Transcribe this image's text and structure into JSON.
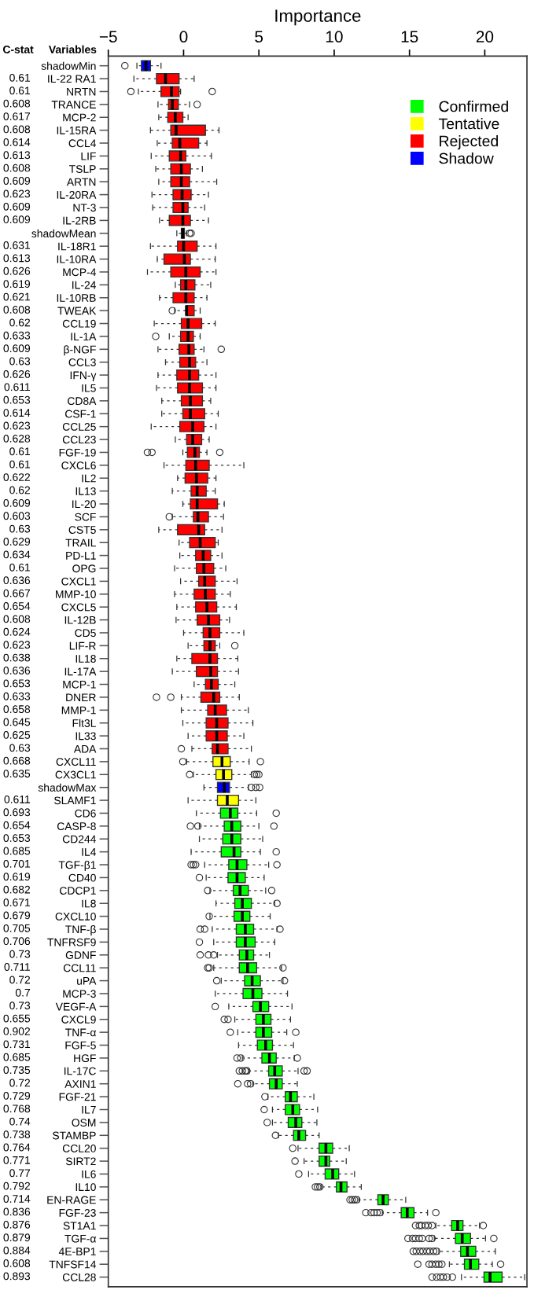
{
  "chart_data": {
    "type": "box",
    "xlabel": "Importance",
    "ylabel": "Variables",
    "y2label": "C-stat",
    "orientation": "horizontal",
    "legend": "top right",
    "xlim": [
      -5,
      22.8
    ],
    "xticks": [
      {
        "value": -5,
        "label": "−5"
      },
      0,
      5,
      10,
      15,
      20
    ],
    "categories": [
      "shadowMin",
      "IL-22 RA1",
      "NRTN",
      "TRANCE",
      "MCP-2",
      "IL-15RA",
      "CCL4",
      "LIF",
      "TSLP",
      "ARTN",
      "IL-20RA",
      "NT-3",
      "IL-2RB",
      "shadowMean",
      "IL-18R1",
      "IL-10RA",
      "MCP-4",
      "IL-24",
      "IL-10RB",
      "TWEAK",
      "CCL19",
      "IL-1A",
      "β-NGF",
      "CCL3",
      "IFN-γ",
      "IL5",
      "CD8A",
      "CSF-1",
      "CCL25",
      "CCL23",
      "FGF-19",
      "CXCL6",
      "IL2",
      "IL13",
      "IL-20",
      "SCF",
      "CST5",
      "TRAIL",
      "PD-L1",
      "OPG",
      "CXCL1",
      "MMP-10",
      "CXCL5",
      "IL-12B",
      "CD5",
      "LIF-R",
      "IL18",
      "IL-17A",
      "MCP-1",
      "DNER",
      "MMP-1",
      "Flt3L",
      "IL33",
      "ADA",
      "CXCL11",
      "CX3CL1",
      "shadowMax",
      "SLAMF1",
      "CD6",
      "CASP-8",
      "CD244",
      "IL4",
      "TGF-β1",
      "CD40",
      "CDCP1",
      "IL8",
      "CXCL10",
      "TNF-β",
      "TNFRSF9",
      "GDNF",
      "CCL11",
      "uPA",
      "MCP-3",
      "VEGF-A",
      "CXCL9",
      "TNF-α",
      "FGF-5",
      "HGF",
      "IL-17C",
      "AXIN1",
      "FGF-21",
      "IL7",
      "OSM",
      "STAMBP",
      "CCL20",
      "SIRT2",
      "IL6",
      "IL10",
      "EN-RAGE",
      "FGF-23",
      "ST1A1",
      "TGF-α",
      "4E-BP1",
      "TNFSF14",
      "CCL28"
    ],
    "y2_categories": [
      null,
      "0.61",
      "0.61",
      "0.608",
      "0.617",
      "0.608",
      "0.614",
      "0.613",
      "0.608",
      "0.609",
      "0.623",
      "0.609",
      "0.609",
      null,
      "0.631",
      "0.613",
      "0.626",
      "0.619",
      "0.621",
      "0.608",
      "0.62",
      "0.633",
      "0.609",
      "0.63",
      "0.626",
      "0.611",
      "0.653",
      "0.614",
      "0.623",
      "0.628",
      "0.61",
      "0.61",
      "0.622",
      "0.62",
      "0.609",
      "0.603",
      "0.63",
      "0.629",
      "0.634",
      "0.61",
      "0.636",
      "0.667",
      "0.654",
      "0.608",
      "0.624",
      "0.623",
      "0.638",
      "0.636",
      "0.653",
      "0.633",
      "0.658",
      "0.645",
      "0.625",
      "0.63",
      "0.668",
      "0.635",
      null,
      "0.611",
      "0.693",
      "0.654",
      "0.653",
      "0.685",
      "0.701",
      "0.619",
      "0.682",
      "0.671",
      "0.679",
      "0.705",
      "0.706",
      "0.73",
      "0.711",
      "0.72",
      "0.7",
      "0.73",
      "0.655",
      "0.902",
      "0.731",
      "0.685",
      "0.735",
      "0.72",
      "0.729",
      "0.768",
      "0.74",
      "0.738",
      "0.764",
      "0.771",
      "0.77",
      "0.792",
      "0.714",
      "0.836",
      "0.876",
      "0.879",
      "0.884",
      "0.608",
      "0.893"
    ],
    "series": [
      {
        "name": "Confirmed",
        "color": "#00ff00",
        "boxes": [
          null,
          null,
          null,
          null,
          null,
          null,
          null,
          null,
          null,
          null,
          null,
          null,
          null,
          null,
          null,
          null,
          null,
          null,
          null,
          null,
          null,
          null,
          null,
          null,
          null,
          null,
          null,
          null,
          null,
          null,
          null,
          null,
          null,
          null,
          null,
          null,
          null,
          null,
          null,
          null,
          null,
          null,
          null,
          null,
          null,
          null,
          null,
          null,
          null,
          null,
          null,
          null,
          null,
          null,
          null,
          null,
          null,
          null,
          {
            "low": 0.85,
            "q1": 2.45,
            "median": 3.1,
            "q3": 3.6,
            "high": 4.85,
            "outliers": [
              6.15
            ]
          },
          {
            "low": 1.05,
            "q1": 2.7,
            "median": 3.2,
            "q3": 3.8,
            "high": 5.0,
            "outliers": [
              0.45,
              0.95,
              6.0
            ]
          },
          {
            "low": 1.05,
            "q1": 2.6,
            "median": 3.2,
            "q3": 3.8,
            "high": 5.25
          },
          {
            "low": 0.5,
            "q1": 2.5,
            "median": 3.35,
            "q3": 3.8,
            "high": 5.1,
            "outliers": [
              6.15
            ]
          },
          {
            "low": 1.4,
            "q1": 3.0,
            "median": 3.55,
            "q3": 4.2,
            "high": 5.65,
            "outliers": [
              0.5,
              0.65,
              0.8,
              6.2
            ]
          },
          {
            "low": 1.5,
            "q1": 2.95,
            "median": 3.55,
            "q3": 4.1,
            "high": 5.35,
            "outliers": [
              1.05
            ]
          },
          {
            "low": 1.75,
            "q1": 3.3,
            "median": 3.75,
            "q3": 4.3,
            "high": 5.45,
            "outliers": [
              1.6,
              5.85
            ]
          },
          {
            "low": 2.15,
            "q1": 3.4,
            "median": 3.9,
            "q3": 4.5,
            "high": 6.05,
            "outliers": [
              6.2
            ]
          },
          {
            "low": 1.75,
            "q1": 3.35,
            "median": 3.9,
            "q3": 4.4,
            "high": 5.75,
            "outliers": [
              1.7
            ]
          },
          {
            "low": 1.9,
            "q1": 3.5,
            "median": 4.1,
            "q3": 4.65,
            "high": 6.2,
            "outliers": [
              1.1,
              1.4,
              6.4
            ]
          },
          {
            "low": 2.0,
            "q1": 3.5,
            "median": 4.1,
            "q3": 4.75,
            "high": 6.05,
            "outliers": [
              1.05
            ]
          },
          {
            "low": 2.25,
            "q1": 3.7,
            "median": 4.2,
            "q3": 4.65,
            "high": 5.7,
            "outliers": [
              1.1,
              1.65,
              2.0
            ]
          },
          {
            "low": 2.0,
            "q1": 3.7,
            "median": 4.25,
            "q3": 4.85,
            "high": 6.5,
            "outliers": [
              1.6,
              1.7,
              6.6
            ]
          },
          {
            "low": 2.5,
            "q1": 4.05,
            "median": 4.55,
            "q3": 5.1,
            "high": 6.6,
            "outliers": [
              2.2,
              6.7
            ]
          },
          {
            "low": 2.1,
            "q1": 3.95,
            "median": 4.6,
            "q3": 5.2,
            "high": 6.9
          },
          {
            "low": 3.0,
            "q1": 4.6,
            "median": 5.1,
            "q3": 5.65,
            "high": 7.2,
            "outliers": [
              2.1
            ]
          },
          {
            "low": 3.4,
            "q1": 4.8,
            "median": 5.3,
            "q3": 5.8,
            "high": 7.1,
            "outliers": [
              2.7,
              2.95
            ]
          },
          {
            "low": 3.6,
            "q1": 4.8,
            "median": 5.3,
            "q3": 5.85,
            "high": 6.85,
            "outliers": [
              3.1,
              7.45
            ]
          },
          {
            "low": 3.65,
            "q1": 4.9,
            "median": 5.45,
            "q3": 5.9,
            "high": 7.3
          },
          {
            "low": 3.9,
            "q1": 5.2,
            "median": 5.7,
            "q3": 6.15,
            "high": 7.35,
            "outliers": [
              3.55,
              3.8,
              7.55
            ]
          },
          {
            "low": 4.35,
            "q1": 5.65,
            "median": 6.05,
            "q3": 6.55,
            "high": 7.6,
            "outliers": [
              3.7,
              3.9,
              4.1,
              4.2,
              8.0,
              8.2
            ]
          },
          {
            "low": 4.6,
            "q1": 5.7,
            "median": 6.15,
            "q3": 6.55,
            "high": 7.55,
            "outliers": [
              3.6,
              4.25,
              4.45
            ]
          },
          {
            "low": 5.6,
            "q1": 6.75,
            "median": 7.1,
            "q3": 7.55,
            "high": 8.65,
            "outliers": [
              5.4
            ]
          },
          {
            "low": 5.9,
            "q1": 6.75,
            "median": 7.25,
            "q3": 7.7,
            "high": 8.9,
            "outliers": [
              5.35
            ]
          },
          {
            "low": 5.9,
            "q1": 6.95,
            "median": 7.45,
            "q3": 7.85,
            "high": 8.85,
            "outliers": [
              5.55
            ]
          },
          {
            "low": 6.3,
            "q1": 7.3,
            "median": 7.65,
            "q3": 8.1,
            "high": 9.0,
            "outliers": [
              6.1
            ]
          },
          {
            "low": 7.6,
            "q1": 9.0,
            "median": 9.45,
            "q3": 9.9,
            "high": 11.0,
            "outliers": [
              7.25
            ]
          },
          {
            "low": 8.0,
            "q1": 9.0,
            "median": 9.45,
            "q3": 9.7,
            "high": 10.8,
            "outliers": [
              7.4
            ]
          },
          {
            "low": 8.3,
            "q1": 9.4,
            "median": 9.9,
            "q3": 10.3,
            "high": 11.35,
            "outliers": [
              7.65
            ]
          },
          {
            "low": 9.15,
            "q1": 10.15,
            "median": 10.45,
            "q3": 10.85,
            "high": 11.8,
            "outliers": [
              8.75,
              8.9,
              9.05
            ]
          },
          {
            "low": 11.65,
            "q1": 12.9,
            "median": 13.25,
            "q3": 13.6,
            "high": 14.75,
            "outliers": [
              11.05,
              11.2,
              11.35,
              11.5
            ]
          },
          {
            "low": 13.2,
            "q1": 14.45,
            "median": 14.85,
            "q3": 15.3,
            "high": 16.2,
            "outliers": [
              12.1,
              12.45,
              12.65,
              12.85,
              13.05,
              16.75
            ]
          },
          {
            "low": 16.75,
            "q1": 17.8,
            "median": 18.2,
            "q3": 18.55,
            "high": 19.65,
            "outliers": [
              15.4,
              15.65,
              15.8,
              16.05,
              16.25,
              16.5,
              19.9
            ]
          },
          {
            "low": 16.65,
            "q1": 18.05,
            "median": 18.5,
            "q3": 19.05,
            "high": 20.05,
            "outliers": [
              14.9,
              15.2,
              15.4,
              15.65,
              15.85,
              16.3,
              16.5,
              20.6
            ]
          },
          {
            "low": 16.95,
            "q1": 18.4,
            "median": 18.85,
            "q3": 19.4,
            "high": 20.7,
            "outliers": [
              15.25,
              15.45,
              15.7,
              15.9,
              16.15,
              16.35,
              16.6,
              16.8
            ]
          },
          {
            "low": 17.65,
            "q1": 18.65,
            "median": 19.05,
            "q3": 19.6,
            "high": 20.5,
            "outliers": [
              15.55,
              16.3,
              16.5,
              16.75,
              16.95,
              17.15,
              21.05
            ]
          },
          {
            "low": 18.45,
            "q1": 19.95,
            "median": 20.35,
            "q3": 21.15,
            "high": 22.65,
            "outliers": [
              16.5,
              16.8,
              17.05,
              17.25,
              17.5,
              17.85
            ]
          }
        ]
      },
      {
        "name": "Tentative",
        "color": "#ffff00",
        "boxes": [
          null,
          null,
          null,
          null,
          null,
          null,
          null,
          null,
          null,
          null,
          null,
          null,
          null,
          null,
          null,
          null,
          null,
          null,
          null,
          null,
          null,
          null,
          null,
          null,
          null,
          null,
          null,
          null,
          null,
          null,
          null,
          null,
          null,
          null,
          null,
          null,
          null,
          null,
          null,
          null,
          null,
          null,
          null,
          null,
          null,
          null,
          null,
          null,
          null,
          null,
          null,
          null,
          null,
          null,
          {
            "low": 0.2,
            "q1": 1.95,
            "median": 2.55,
            "q3": 3.1,
            "high": 4.35,
            "outliers": [
              -0.05,
              5.1
            ]
          },
          {
            "low": 0.65,
            "q1": 2.15,
            "median": 2.65,
            "q3": 3.2,
            "high": 4.5,
            "outliers": [
              0.4,
              4.7,
              4.85,
              5.0
            ]
          },
          null,
          {
            "low": 0.3,
            "q1": 2.25,
            "median": 2.9,
            "q3": 3.65,
            "high": 4.8
          },
          null,
          null,
          null,
          null,
          null,
          null,
          null,
          null,
          null,
          null,
          null,
          null,
          null,
          null,
          null,
          null,
          null,
          null,
          null,
          null,
          null,
          null,
          null,
          null,
          null,
          null,
          null,
          null,
          null,
          null,
          null,
          null,
          null,
          null,
          null,
          null,
          null
        ]
      },
      {
        "name": "Rejected",
        "color": "#ff0000",
        "boxes": [
          null,
          {
            "low": -3.3,
            "q1": -1.8,
            "median": -1.2,
            "q3": -0.3,
            "high": 0.7
          },
          {
            "low": -3.0,
            "q1": -1.5,
            "median": -0.8,
            "q3": -0.3,
            "high": -0.2,
            "outliers": [
              -3.5,
              1.9
            ]
          },
          {
            "low": -1.7,
            "q1": -1.0,
            "median": -0.75,
            "q3": -0.35,
            "high": 0.4,
            "outliers": [
              0.9
            ]
          },
          {
            "low": -1.65,
            "q1": -1.05,
            "median": -0.55,
            "q3": -0.05,
            "high": 0.3
          },
          {
            "low": -2.2,
            "q1": -0.85,
            "median": -0.5,
            "q3": 1.45,
            "high": 2.35
          },
          {
            "low": -1.75,
            "q1": -0.75,
            "median": -0.25,
            "q3": 1.0,
            "high": 1.55
          },
          {
            "low": -2.15,
            "q1": -0.95,
            "median": -0.2,
            "q3": 0.15,
            "high": 1.85
          },
          {
            "low": -1.85,
            "q1": -0.85,
            "median": -0.15,
            "q3": 0.45,
            "high": 1.25
          },
          {
            "low": -1.65,
            "q1": -0.85,
            "median": -0.15,
            "q3": 0.4,
            "high": 2.2
          },
          {
            "low": -2.1,
            "q1": -0.7,
            "median": -0.1,
            "q3": 0.5,
            "high": 1.65
          },
          {
            "low": -2.05,
            "q1": -0.7,
            "median": -0.05,
            "q3": 0.3,
            "high": 1.4
          },
          {
            "low": -1.6,
            "q1": -0.95,
            "median": -0.05,
            "q3": 0.45,
            "high": 1.65
          },
          null,
          {
            "low": -2.2,
            "q1": -0.4,
            "median": 0,
            "q3": 0.9,
            "high": 2.15
          },
          {
            "low": -1.75,
            "q1": -1.3,
            "median": 0.05,
            "q3": 0.45,
            "high": 2.1
          },
          {
            "low": -2.4,
            "q1": -0.85,
            "median": 0.15,
            "q3": 1.1,
            "high": 2.15
          },
          {
            "low": -0.55,
            "q1": -0.2,
            "median": 0.15,
            "q3": 0.75,
            "high": 1.8
          },
          {
            "low": -1.6,
            "q1": -0.7,
            "median": 0.15,
            "q3": 0.7,
            "high": 1.55
          },
          {
            "low": -0.6,
            "q1": 0.15,
            "median": 0.2,
            "q3": 0.7,
            "high": 1.1,
            "outliers": [
              -0.75
            ]
          },
          {
            "low": -1.95,
            "q1": -0.15,
            "median": 0.3,
            "q3": 1.2,
            "high": 2.1
          },
          {
            "low": -0.95,
            "q1": -0.2,
            "median": 0.3,
            "q3": 0.65,
            "high": 1.1,
            "outliers": [
              -1.85
            ]
          },
          {
            "low": -1.7,
            "q1": -0.3,
            "median": 0.35,
            "q3": 0.7,
            "high": 1.35,
            "outliers": [
              2.5
            ]
          },
          {
            "low": -1.2,
            "q1": -0.25,
            "median": 0.4,
            "q3": 0.8,
            "high": 1.55
          },
          {
            "low": -1.7,
            "q1": -0.45,
            "median": 0.4,
            "q3": 1.0,
            "high": 2.15
          },
          {
            "low": -1.8,
            "q1": -0.4,
            "median": 0.4,
            "q3": 1.25,
            "high": 2.15
          },
          {
            "low": -1.45,
            "q1": -0.15,
            "median": 0.45,
            "q3": 1.25,
            "high": 1.8
          },
          {
            "low": -1.45,
            "q1": -0.05,
            "median": 0.45,
            "q3": 1.4,
            "high": 2.3
          },
          {
            "low": -2.15,
            "q1": -0.25,
            "median": 0.6,
            "q3": 1.35,
            "high": 2.15
          },
          {
            "low": -0.55,
            "q1": 0.2,
            "median": 0.6,
            "q3": 1.2,
            "high": 1.7
          },
          {
            "low": -0.05,
            "q1": 0.25,
            "median": 0.75,
            "q3": 1.05,
            "high": 1.55,
            "outliers": [
              -2.4,
              -2.1,
              2.4
            ]
          },
          {
            "low": -1.3,
            "q1": 0.15,
            "median": 0.8,
            "q3": 1.7,
            "high": 4.0
          },
          {
            "low": -0.4,
            "q1": 0.1,
            "median": 0.85,
            "q3": 1.6,
            "high": 2.15
          },
          {
            "low": -0.75,
            "q1": 0.5,
            "median": 0.9,
            "q3": 1.5,
            "high": 2.1
          },
          {
            "low": -0.05,
            "q1": 0.45,
            "median": 0.9,
            "q3": 2.25,
            "high": 2.7
          },
          {
            "low": -0.75,
            "q1": 0.65,
            "median": 0.95,
            "q3": 1.65,
            "high": 2.65,
            "outliers": [
              -0.95
            ]
          },
          {
            "low": -1.65,
            "q1": -0.4,
            "median": 1.0,
            "q3": 1.4,
            "high": 2.55
          },
          {
            "low": -0.3,
            "q1": 0.4,
            "median": 1.1,
            "q3": 2.1,
            "high": 2.3
          },
          {
            "low": -0.25,
            "q1": 0.8,
            "median": 1.3,
            "q3": 1.8,
            "high": 2.55
          },
          {
            "low": -0.6,
            "q1": 0.85,
            "median": 1.35,
            "q3": 2.0,
            "high": 2.8
          },
          {
            "low": -0.2,
            "q1": 1.0,
            "median": 1.4,
            "q3": 2.1,
            "high": 3.55
          },
          {
            "low": -0.6,
            "q1": 0.7,
            "median": 1.45,
            "q3": 2.1,
            "high": 3.1
          },
          {
            "low": -0.45,
            "q1": 0.8,
            "median": 1.55,
            "q3": 2.2,
            "high": 3.5
          },
          {
            "low": -0.5,
            "q1": 0.9,
            "median": 1.65,
            "q3": 2.4,
            "high": 3.05
          },
          {
            "low": 0,
            "q1": 1.3,
            "median": 1.75,
            "q3": 2.4,
            "high": 4.0
          },
          {
            "low": 0.3,
            "q1": 1.35,
            "median": 1.75,
            "q3": 2.1,
            "high": 2.4,
            "outliers": [
              3.4
            ]
          },
          {
            "low": -0.45,
            "q1": 0.55,
            "median": 1.75,
            "q3": 2.25,
            "high": 3.6
          },
          {
            "low": -0.75,
            "q1": 0.85,
            "median": 1.8,
            "q3": 2.25,
            "high": 3.65
          },
          {
            "low": 0.7,
            "q1": 1.45,
            "median": 1.85,
            "q3": 2.3,
            "high": 3.4
          },
          {
            "low": -0.15,
            "q1": 1.15,
            "median": 2.0,
            "q3": 2.4,
            "high": 3.7,
            "outliers": [
              -1.8,
              -0.85
            ]
          },
          {
            "low": -0.15,
            "q1": 1.6,
            "median": 2.1,
            "q3": 2.85,
            "high": 4.3
          },
          {
            "low": -0.05,
            "q1": 1.5,
            "median": 2.2,
            "q3": 2.95,
            "high": 4.6
          },
          {
            "low": 0.3,
            "q1": 1.5,
            "median": 2.2,
            "q3": 2.9,
            "high": 4.0
          },
          {
            "low": 0.55,
            "q1": 1.9,
            "median": 2.25,
            "q3": 2.95,
            "high": 4.5,
            "outliers": [
              -0.15
            ]
          },
          null,
          null,
          null,
          null,
          null,
          null,
          null,
          null,
          null,
          null,
          null,
          null,
          null,
          null,
          null,
          null,
          null,
          null,
          null,
          null,
          null,
          null,
          null,
          null,
          null,
          null,
          null,
          null,
          null,
          null,
          null,
          null,
          null,
          null,
          null,
          null,
          null,
          null,
          null,
          null,
          null
        ]
      },
      {
        "name": "Shadow",
        "color": "#0000ff",
        "boxes": [
          {
            "low": -3.1,
            "q1": -2.8,
            "median": -2.5,
            "q3": -2.2,
            "high": -1.5,
            "outliers": [
              -3.9
            ]
          },
          null,
          null,
          null,
          null,
          null,
          null,
          null,
          null,
          null,
          null,
          null,
          null,
          {
            "low": -0.45,
            "q1": -0.15,
            "median": -0.05,
            "q3": 0.05,
            "high": 0.2,
            "outliers": [
              0.4,
              0.5
            ]
          },
          null,
          null,
          null,
          null,
          null,
          null,
          null,
          null,
          null,
          null,
          null,
          null,
          null,
          null,
          null,
          null,
          null,
          null,
          null,
          null,
          null,
          null,
          null,
          null,
          null,
          null,
          null,
          null,
          null,
          null,
          null,
          null,
          null,
          null,
          null,
          null,
          null,
          null,
          null,
          null,
          null,
          null,
          {
            "low": 1.35,
            "q1": 2.25,
            "median": 2.7,
            "q3": 3.05,
            "high": 4.3,
            "outliers": [
              4.5,
              4.8,
              5.05
            ]
          },
          null,
          null,
          null,
          null,
          null,
          null,
          null,
          null,
          null,
          null,
          null,
          null,
          null,
          null,
          null,
          null,
          null,
          null,
          null,
          null,
          null,
          null,
          null,
          null,
          null,
          null,
          null,
          null,
          null,
          null,
          null,
          null,
          null,
          null,
          null,
          null,
          null,
          null
        ]
      }
    ]
  }
}
